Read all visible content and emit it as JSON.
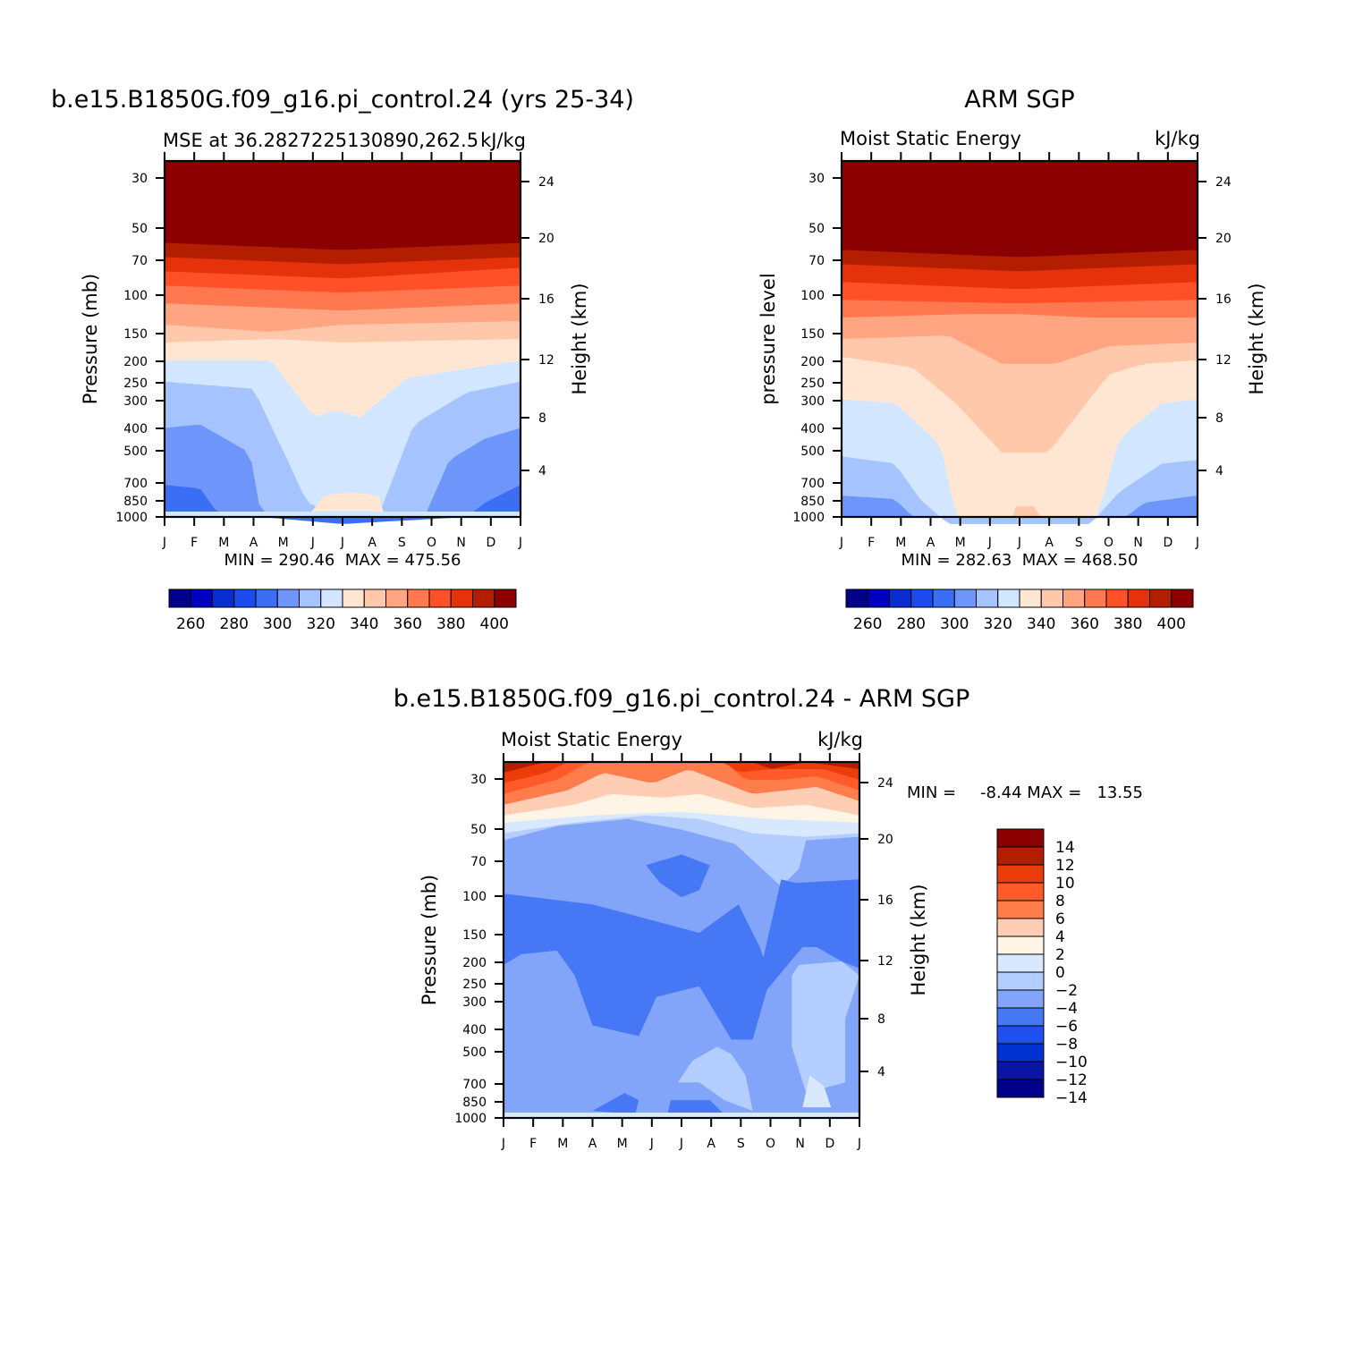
{
  "figure": {
    "panels": [
      {
        "title": "b.e15.B1850G.f09_g16.pi_control.24 (yrs 25-34)",
        "left_label": "MSE at 36.2827225130890,262.5",
        "right_label": "kJ/kg",
        "ylabel": "Pressure (mb)",
        "ylabel_right": "Height (km)",
        "minmax": "MIN = 290.46  MAX = 475.56"
      },
      {
        "title": "ARM SGP",
        "left_label": "Moist Static Energy",
        "right_label": "kJ/kg",
        "ylabel": "pressure level",
        "ylabel_right": "Height (km)",
        "minmax": "MIN = 282.63  MAX = 468.50"
      },
      {
        "title": "b.e15.B1850G.f09_g16.pi_control.24 - ARM SGP",
        "left_label": "Moist Static Energy",
        "right_label": "kJ/kg",
        "ylabel": "Pressure (mb)",
        "ylabel_right": "Height (km)",
        "minmax_label": "MIN =",
        "minmax_value": "-8.44 MAX =   13.55"
      }
    ]
  },
  "palette": {
    "abs": [
      "#00008b",
      "#0000c0",
      "#0a2dd2",
      "#1e4bf0",
      "#3c6ef5",
      "#6e96fa",
      "#a5c3ff",
      "#d2e6ff",
      "#ffe6d2",
      "#ffc8aa",
      "#ffa582",
      "#ff7850",
      "#ff5028",
      "#e6320a",
      "#b41e00",
      "#8b0000"
    ],
    "diff": [
      "#00008b",
      "#0a14a5",
      "#0032d2",
      "#1e50f0",
      "#4678f5",
      "#82a5fa",
      "#b4cdff",
      "#d7e8ff",
      "#fff5e6",
      "#ffcdb4",
      "#ff7d4b",
      "#ff5a28",
      "#eb3c0a",
      "#b41e00",
      "#8b0000"
    ]
  },
  "chart_data": [
    {
      "type": "heatmap",
      "title": "b.e15.B1850G.f09_g16.pi_control.24 (yrs 25-34)",
      "xlabel": "",
      "ylabel": "Pressure (mb)",
      "y2label": "Height (km)",
      "x_ticks": [
        "J",
        "F",
        "M",
        "A",
        "M",
        "J",
        "J",
        "A",
        "S",
        "O",
        "N",
        "D",
        "J"
      ],
      "y_ticks": [
        30,
        50,
        70,
        100,
        150,
        200,
        250,
        300,
        400,
        500,
        700,
        850,
        1000
      ],
      "y_scale": "log",
      "ylim": [
        1000,
        25
      ],
      "y2_ticks": [
        4,
        8,
        12,
        16,
        20,
        24
      ],
      "levels": [
        250,
        260,
        270,
        280,
        290,
        300,
        310,
        320,
        330,
        340,
        350,
        360,
        370,
        380,
        390,
        400
      ],
      "colorbar_labels": [
        "260",
        "280",
        "300",
        "320",
        "340",
        "360",
        "380",
        "400"
      ],
      "min": 290.46,
      "max": 475.56,
      "units": "kJ/kg"
    },
    {
      "type": "heatmap",
      "title": "ARM SGP",
      "xlabel": "",
      "ylabel": "pressure level",
      "y2label": "Height (km)",
      "x_ticks": [
        "J",
        "F",
        "M",
        "A",
        "M",
        "J",
        "J",
        "A",
        "S",
        "O",
        "N",
        "D",
        "J"
      ],
      "y_ticks": [
        30,
        50,
        70,
        100,
        150,
        200,
        250,
        300,
        400,
        500,
        700,
        850,
        1000
      ],
      "y_scale": "log",
      "ylim": [
        1000,
        25
      ],
      "y2_ticks": [
        4,
        8,
        12,
        16,
        20,
        24
      ],
      "levels": [
        250,
        260,
        270,
        280,
        290,
        300,
        310,
        320,
        330,
        340,
        350,
        360,
        370,
        380,
        390,
        400
      ],
      "colorbar_labels": [
        "260",
        "280",
        "300",
        "320",
        "340",
        "360",
        "380",
        "400"
      ],
      "min": 282.63,
      "max": 468.5,
      "units": "kJ/kg"
    },
    {
      "type": "heatmap",
      "title": "b.e15.B1850G.f09_g16.pi_control.24 - ARM SGP",
      "xlabel": "",
      "ylabel": "Pressure (mb)",
      "y2label": "Height (km)",
      "x_ticks": [
        "J",
        "F",
        "M",
        "A",
        "M",
        "J",
        "J",
        "A",
        "S",
        "O",
        "N",
        "D",
        "J"
      ],
      "y_ticks": [
        30,
        50,
        70,
        100,
        150,
        200,
        250,
        300,
        400,
        500,
        700,
        850,
        1000
      ],
      "y_scale": "log",
      "ylim": [
        1000,
        25
      ],
      "y2_ticks": [
        4,
        8,
        12,
        16,
        20,
        24
      ],
      "levels": [
        -14,
        -12,
        -10,
        -8,
        -6,
        -4,
        -2,
        0,
        2,
        4,
        6,
        8,
        10,
        12,
        14
      ],
      "colorbar_labels": [
        "14",
        "12",
        "10",
        "8",
        "6",
        "4",
        "2",
        "0",
        "−2",
        "−4",
        "−6",
        "−8",
        "−10",
        "−12",
        "−14"
      ],
      "min": -8.44,
      "max": 13.55,
      "units": "kJ/kg"
    }
  ]
}
